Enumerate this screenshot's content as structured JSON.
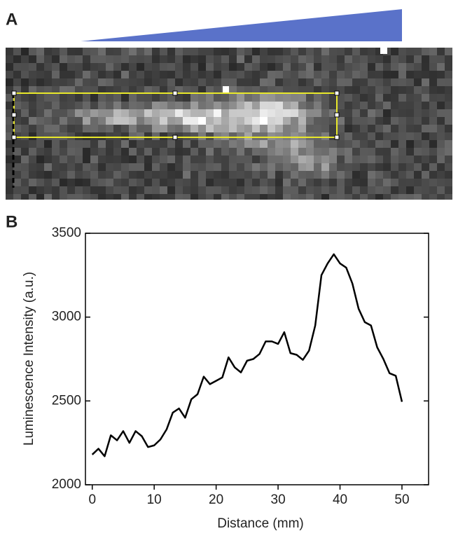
{
  "panel_a": {
    "label": "A"
  },
  "chart_data": {
    "type": "line",
    "panel_label": "B",
    "xlabel": "Distance (mm)",
    "ylabel": "Luminescence Intensity (a.u.)",
    "x": [
      0,
      1,
      2,
      3,
      4,
      5,
      6,
      7,
      8,
      9,
      10,
      11,
      12,
      13,
      14,
      15,
      16,
      17,
      18,
      19,
      20,
      21,
      22,
      23,
      24,
      25,
      26,
      27,
      28,
      29,
      30,
      31,
      32,
      33,
      34,
      35,
      36,
      37,
      38,
      39,
      40,
      41,
      42,
      43,
      44,
      45,
      46,
      47,
      48,
      49,
      50
    ],
    "series": [
      {
        "color": "#000000",
        "values": [
          2180,
          2215,
          2170,
          2295,
          2265,
          2320,
          2250,
          2320,
          2290,
          2225,
          2235,
          2270,
          2330,
          2430,
          2455,
          2400,
          2510,
          2540,
          2645,
          2600,
          2620,
          2640,
          2760,
          2700,
          2670,
          2740,
          2750,
          2780,
          2855,
          2855,
          2840,
          2910,
          2785,
          2775,
          2745,
          2800,
          2950,
          3250,
          3320,
          3375,
          3320,
          3295,
          3200,
          3050,
          2970,
          2950,
          2820,
          2750,
          2665,
          2650,
          2495
        ]
      }
    ],
    "xlim": [
      -1.1,
      54.3
    ],
    "ylim": [
      2000,
      3500
    ],
    "xticks": [
      0,
      10,
      20,
      30,
      40,
      50
    ],
    "yticks": [
      2000,
      2500,
      3000,
      3500
    ]
  }
}
